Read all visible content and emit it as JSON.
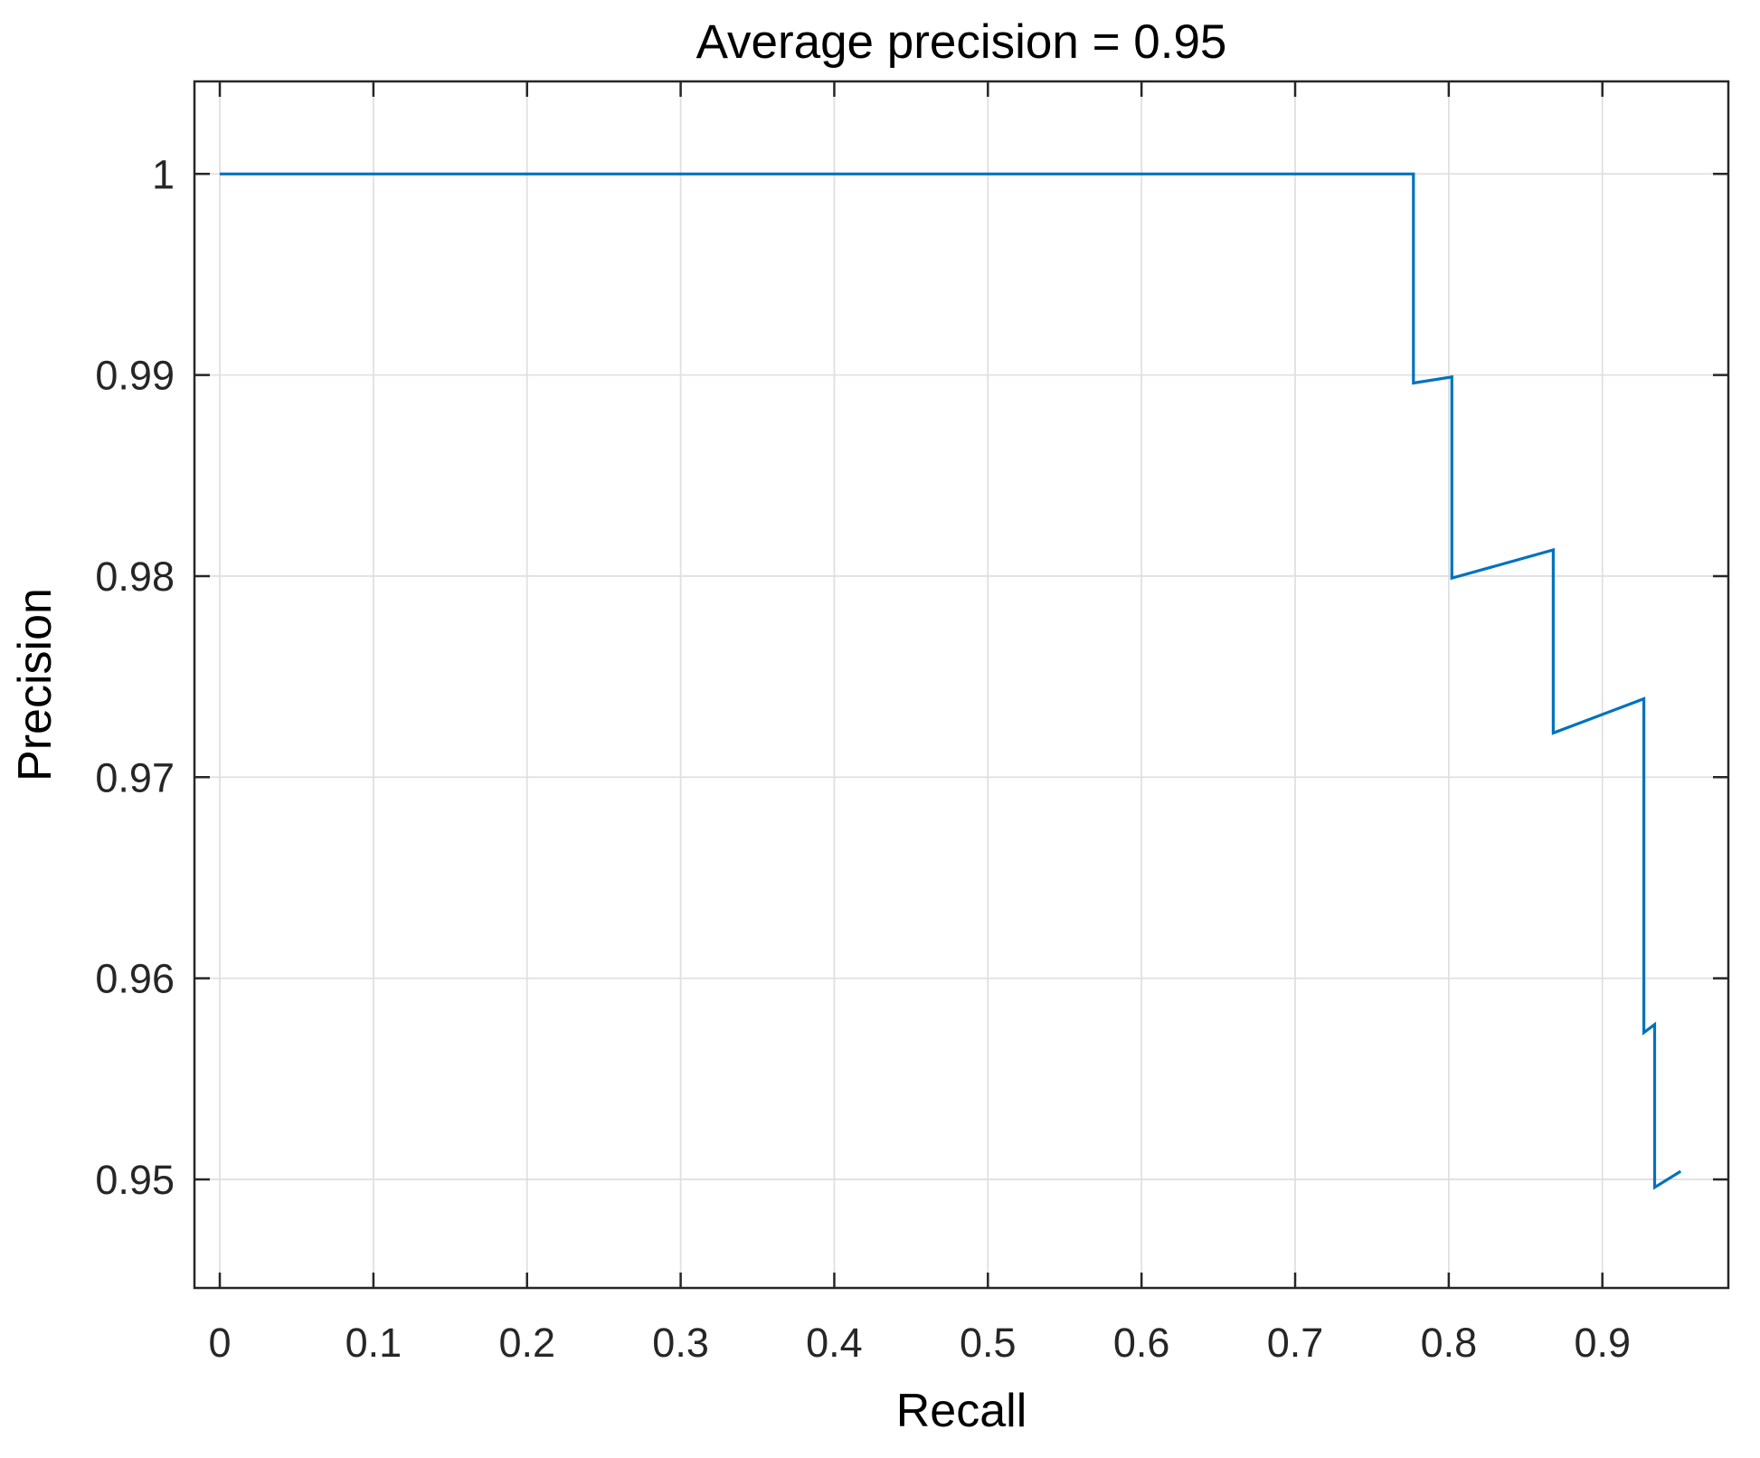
{
  "figure": {
    "background_color": "#ffffff"
  },
  "chart_data": {
    "type": "line",
    "title": "Average precision = 0.95",
    "xlabel": "Recall",
    "ylabel": "Precision",
    "xlim": [
      -0.0165,
      0.982
    ],
    "ylim": [
      0.9446,
      1.0046
    ],
    "x_ticks": [
      0,
      0.1,
      0.2,
      0.3,
      0.4,
      0.5,
      0.6,
      0.7,
      0.8,
      0.9
    ],
    "x_tick_labels": [
      "0",
      "0.1",
      "0.2",
      "0.3",
      "0.4",
      "0.5",
      "0.6",
      "0.7",
      "0.8",
      "0.9"
    ],
    "y_ticks": [
      0.95,
      0.96,
      0.97,
      0.98,
      0.99,
      1
    ],
    "y_tick_labels": [
      "0.95",
      "0.96",
      "0.97",
      "0.98",
      "0.99",
      "1"
    ],
    "grid": true,
    "box": true,
    "legend": false,
    "line_color": "#0072BD",
    "axis_color": "#262626",
    "grid_color": "#e0e0e0",
    "series": [
      {
        "name": "precision-recall curve",
        "points": [
          [
            0.0,
            1.0
          ],
          [
            0.777,
            1.0
          ],
          [
            0.777,
            0.9896
          ],
          [
            0.802,
            0.9899
          ],
          [
            0.802,
            0.9799
          ],
          [
            0.868,
            0.9813
          ],
          [
            0.868,
            0.9722
          ],
          [
            0.927,
            0.9739
          ],
          [
            0.927,
            0.9573
          ],
          [
            0.934,
            0.9577
          ],
          [
            0.934,
            0.9496
          ],
          [
            0.951,
            0.9504
          ]
        ]
      }
    ]
  }
}
